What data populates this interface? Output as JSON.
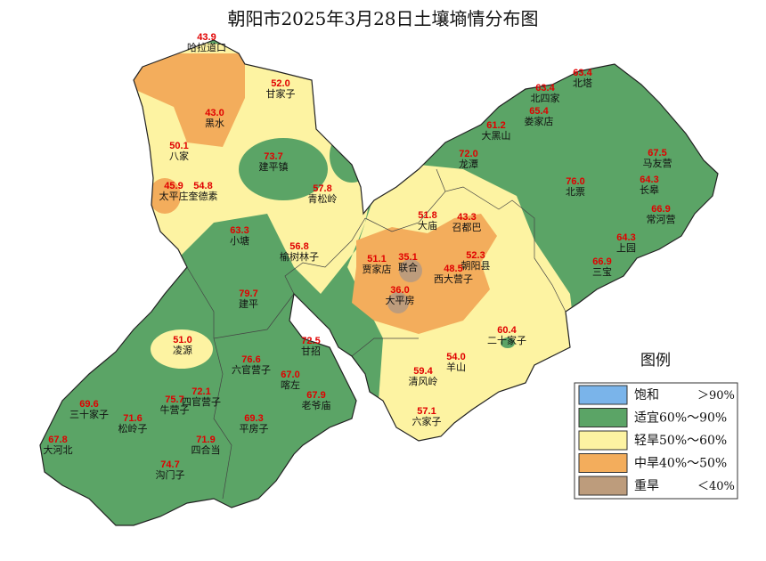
{
  "title": "朝阳市2025年3月28日土壤墒情分布图",
  "stations": [
    {
      "value": "43.9",
      "name": "哈拉道口"
    },
    {
      "value": "52.0",
      "name": "甘家子"
    },
    {
      "value": "43.0",
      "name": "黑水"
    },
    {
      "value": "50.1",
      "name": "八家"
    },
    {
      "value": "73.7",
      "name": "建平镇"
    },
    {
      "value": "57.8",
      "name": "青松岭"
    },
    {
      "value": "45.9",
      "name": "太平庄"
    },
    {
      "value": "54.8",
      "name": "奎德素"
    },
    {
      "value": "63.3",
      "name": "小塘"
    },
    {
      "value": "56.8",
      "name": "榆树林子"
    },
    {
      "value": "79.7",
      "name": "建平"
    },
    {
      "value": "51.0",
      "name": "凌源"
    },
    {
      "value": "72.5",
      "name": "甘招"
    },
    {
      "value": "76.6",
      "name": "六官营子"
    },
    {
      "value": "67.0",
      "name": "喀左"
    },
    {
      "value": "67.9",
      "name": "老爷庙"
    },
    {
      "value": "72.1",
      "name": "四官营子"
    },
    {
      "value": "75.7",
      "name": "牛营子"
    },
    {
      "value": "69.6",
      "name": "三十家子"
    },
    {
      "value": "71.6",
      "name": "松岭子"
    },
    {
      "value": "69.3",
      "name": "平房子"
    },
    {
      "value": "67.8",
      "name": "大河北"
    },
    {
      "value": "71.9",
      "name": "四合当"
    },
    {
      "value": "74.7",
      "name": "沟门子"
    },
    {
      "value": "51.8",
      "name": "大庙"
    },
    {
      "value": "43.3",
      "name": "召都巴"
    },
    {
      "value": "51.1",
      "name": "贾家店"
    },
    {
      "value": "35.1",
      "name": "联合"
    },
    {
      "value": "52.3",
      "name": "朝阳县"
    },
    {
      "value": "48.5",
      "name": "西大营子"
    },
    {
      "value": "36.0",
      "name": "大平房"
    },
    {
      "value": "60.4",
      "name": "二十家子"
    },
    {
      "value": "54.0",
      "name": "羊山"
    },
    {
      "value": "59.4",
      "name": "清风岭"
    },
    {
      "value": "57.1",
      "name": "六家子"
    },
    {
      "value": "63.4",
      "name": "北塔"
    },
    {
      "value": "63.4",
      "name": "北四家"
    },
    {
      "value": "65.4",
      "name": "娄家店"
    },
    {
      "value": "61.2",
      "name": "大黑山"
    },
    {
      "value": "72.0",
      "name": "龙潭"
    },
    {
      "value": "67.5",
      "name": "马友营"
    },
    {
      "value": "76.0",
      "name": "北票"
    },
    {
      "value": "64.3",
      "name": "长皋"
    },
    {
      "value": "66.9",
      "name": "常河营"
    },
    {
      "value": "64.3",
      "name": "上园"
    },
    {
      "value": "66.9",
      "name": "三宝"
    }
  ],
  "legend": {
    "title": "图例",
    "items": [
      {
        "label": "饱和",
        "range": "＞90%",
        "color": "#7ab4ea"
      },
      {
        "label": "适宜60%～90%",
        "color": "#5ba466"
      },
      {
        "label": "轻旱50%～60%",
        "color": "#fdf3a2"
      },
      {
        "label": "中旱40%～50%",
        "color": "#f3ad5c"
      },
      {
        "label": "重旱",
        "range": "＜40%",
        "color": "#bd9c7c"
      }
    ]
  }
}
